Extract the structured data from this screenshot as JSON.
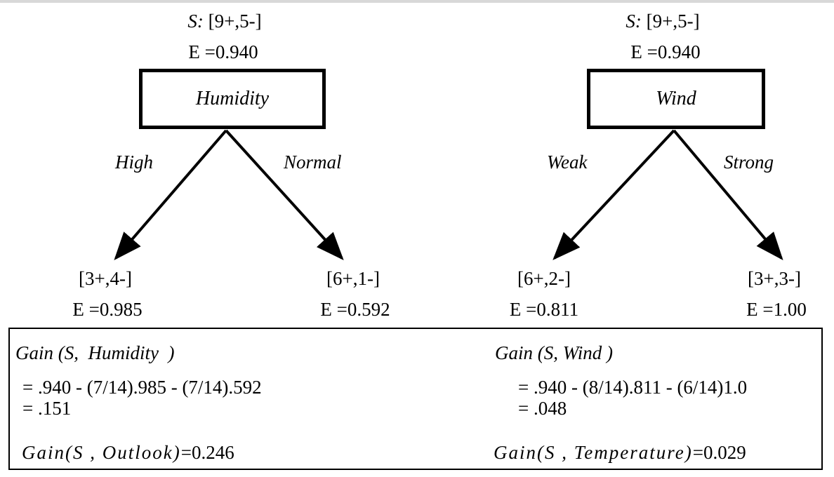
{
  "trees": [
    {
      "root_set": "S: [9+,5-]",
      "root_set_label": "S:",
      "root_set_counts": "[9+,5-]",
      "root_entropy": "E =0.940",
      "attribute": "Humidity",
      "branches": [
        {
          "label": "High",
          "counts": "[3+,4-]",
          "entropy": "E =0.985"
        },
        {
          "label": "Normal",
          "counts": "[6+,1-]",
          "entropy": "E =0.592"
        }
      ]
    },
    {
      "root_set": "S: [9+,5-]",
      "root_set_label": "S:",
      "root_set_counts": "[9+,5-]",
      "root_entropy": "E =0.940",
      "attribute": "Wind",
      "branches": [
        {
          "label": "Weak",
          "counts": "[6+,2-]",
          "entropy": "E =0.811"
        },
        {
          "label": "Strong",
          "counts": "[3+,3-]",
          "entropy": "E =1.00"
        }
      ]
    }
  ],
  "gains": {
    "humidity": {
      "title": "Gain (S,  Humidity  )",
      "line1": "= .940 - (7/14).985 - (7/14).592",
      "line2": "= .151"
    },
    "wind": {
      "title": "Gain (S, Wind )",
      "line1": "= .940 - (8/14).811 - (6/14)1.0",
      "line2": "= .048"
    },
    "outlook": {
      "label": "Gain(S , Outlook)",
      "value": "=0.246"
    },
    "temperature": {
      "label": "Gain(S , Temperature)",
      "value": "=0.029"
    }
  }
}
